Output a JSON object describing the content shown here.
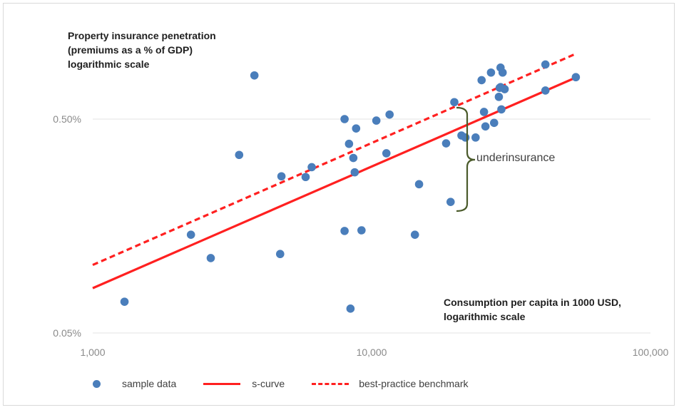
{
  "chart_data": {
    "type": "scatter",
    "x_scale": "log",
    "y_scale": "log",
    "xlim": [
      1000,
      100000
    ],
    "ylim": [
      0.05,
      1.1
    ],
    "x_ticks": [
      {
        "value": 1000,
        "label": "1,000"
      },
      {
        "value": 10000,
        "label": "10,000"
      },
      {
        "value": 100000,
        "label": "100,000"
      }
    ],
    "y_ticks": [
      {
        "value": 0.05,
        "label": "0.05%"
      },
      {
        "value": 0.5,
        "label": "0.50%"
      }
    ],
    "grid": "horizontal",
    "ylabel_lines": [
      "Property insurance penetration",
      "(premiums as a % of GDP)",
      "logarithmic scale"
    ],
    "xlabel_lines": [
      "Consumption per capita in 1000 USD,",
      "logarithmic scale"
    ],
    "annotation": "underinsurance",
    "series": [
      {
        "name": "sample data",
        "kind": "points",
        "color": "#4a7ebb",
        "points": [
          [
            1300,
            0.07
          ],
          [
            2250,
            0.144
          ],
          [
            2650,
            0.112
          ],
          [
            3350,
            0.34
          ],
          [
            3800,
            0.8
          ],
          [
            4700,
            0.117
          ],
          [
            4750,
            0.27
          ],
          [
            5800,
            0.268
          ],
          [
            6100,
            0.298
          ],
          [
            8000,
            0.5
          ],
          [
            8000,
            0.15
          ],
          [
            8300,
            0.383
          ],
          [
            8400,
            0.065
          ],
          [
            8600,
            0.329
          ],
          [
            8700,
            0.282
          ],
          [
            8800,
            0.452
          ],
          [
            9200,
            0.151
          ],
          [
            10400,
            0.492
          ],
          [
            11300,
            0.346
          ],
          [
            11600,
            0.525
          ],
          [
            14300,
            0.144
          ],
          [
            14800,
            0.248
          ],
          [
            18500,
            0.385
          ],
          [
            19200,
            0.205
          ],
          [
            19800,
            0.6
          ],
          [
            21000,
            0.419
          ],
          [
            21700,
            0.41
          ],
          [
            23600,
            0.41
          ],
          [
            24800,
            0.76
          ],
          [
            25300,
            0.54
          ],
          [
            25600,
            0.462
          ],
          [
            26800,
            0.825
          ],
          [
            27500,
            0.48
          ],
          [
            28600,
            0.635
          ],
          [
            28800,
            0.7
          ],
          [
            29000,
            0.87
          ],
          [
            29500,
            0.825
          ],
          [
            29000,
            0.705
          ],
          [
            29200,
            0.555
          ],
          [
            30000,
            0.69
          ],
          [
            42000,
            0.9
          ],
          [
            42000,
            0.68
          ],
          [
            54000,
            0.785
          ]
        ]
      },
      {
        "name": "s-curve",
        "kind": "line",
        "style": "solid",
        "color": "#ff2020",
        "points": [
          [
            1000,
            0.081
          ],
          [
            54000,
            0.782
          ]
        ]
      },
      {
        "name": "best-practice benchmark",
        "kind": "line",
        "style": "dashed",
        "color": "#ff2020",
        "points": [
          [
            1000,
            0.104
          ],
          [
            54000,
            1.01
          ]
        ]
      }
    ]
  }
}
